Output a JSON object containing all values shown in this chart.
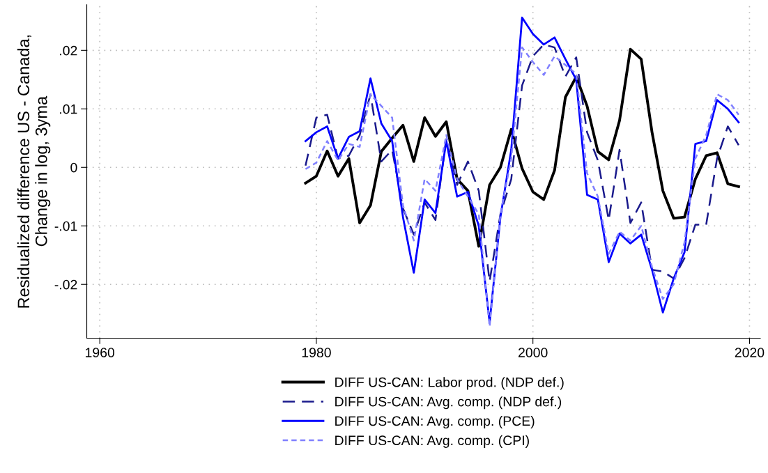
{
  "chart_data": {
    "type": "line",
    "ylabel": "Residualized difference US - Canada,\nChange in log, 3yma",
    "x": [
      1979,
      1980,
      1981,
      1982,
      1983,
      1984,
      1985,
      1986,
      1987,
      1988,
      1989,
      1990,
      1991,
      1992,
      1993,
      1994,
      1995,
      1996,
      1997,
      1998,
      1999,
      2000,
      2001,
      2002,
      2003,
      2004,
      2005,
      2006,
      2007,
      2008,
      2009,
      2010,
      2011,
      2012,
      2013,
      2014,
      2015,
      2016,
      2017,
      2018,
      2019
    ],
    "series": [
      {
        "name": "DIFF US-CAN: Labor prod. (NDP def.)",
        "color": "#000000",
        "line_style": "solid",
        "values": [
          -0.0027,
          -0.0015,
          0.0028,
          -0.0015,
          0.0015,
          -0.0095,
          -0.0065,
          0.0027,
          0.005,
          0.0072,
          0.001,
          0.0085,
          0.0053,
          0.0078,
          -0.002,
          -0.004,
          -0.0135,
          -0.003,
          0.0,
          0.0065,
          -0.0002,
          -0.0042,
          -0.0055,
          -0.0005,
          0.012,
          0.0155,
          0.0105,
          0.0027,
          0.0013,
          0.008,
          0.0202,
          0.0185,
          0.006,
          -0.004,
          -0.0087,
          -0.0085,
          -0.002,
          0.002,
          0.0025,
          -0.0028,
          -0.0033
        ]
      },
      {
        "name": "DIFF US-CAN: Avg. comp. (NDP def.)",
        "color": "#1a1a8c",
        "line_style": "dashed",
        "values": [
          0.0003,
          0.0085,
          0.009,
          0.0015,
          0.002,
          0.0055,
          0.0125,
          0.001,
          0.003,
          -0.007,
          -0.0115,
          -0.006,
          -0.009,
          0.005,
          -0.003,
          0.001,
          -0.004,
          -0.0195,
          -0.008,
          -0.002,
          0.014,
          0.019,
          0.021,
          0.0205,
          0.0155,
          0.0188,
          0.006,
          0.0012,
          -0.009,
          0.003,
          -0.0095,
          -0.006,
          -0.0175,
          -0.0178,
          -0.019,
          -0.0155,
          -0.0098,
          -0.0098,
          0.0015,
          0.007,
          0.0038
        ]
      },
      {
        "name": "DIFF US-CAN: Avg. comp. (PCE)",
        "color": "#0000ff",
        "line_style": "solid",
        "values": [
          0.0045,
          0.006,
          0.007,
          0.0015,
          0.0052,
          0.0062,
          0.0152,
          0.0075,
          0.0045,
          -0.0085,
          -0.018,
          -0.0055,
          -0.0078,
          0.0045,
          -0.005,
          -0.0042,
          -0.01,
          -0.0265,
          -0.0085,
          0.003,
          0.0256,
          0.0228,
          0.021,
          0.0222,
          0.0185,
          0.015,
          -0.0047,
          -0.0055,
          -0.0162,
          -0.0113,
          -0.013,
          -0.0115,
          -0.0175,
          -0.0248,
          -0.019,
          -0.0145,
          0.004,
          0.0045,
          0.0115,
          0.01,
          0.0077
        ]
      },
      {
        "name": "DIFF US-CAN: Avg. comp. (CPI)",
        "color": "#8080ff",
        "line_style": "dotted",
        "values": [
          -0.0003,
          0.0008,
          0.0045,
          0.0012,
          0.004,
          0.0035,
          0.0125,
          0.0105,
          0.0085,
          -0.0065,
          -0.0125,
          -0.002,
          -0.004,
          0.0055,
          -0.002,
          -0.005,
          -0.008,
          -0.0272,
          -0.008,
          0.0015,
          0.0205,
          0.018,
          0.0158,
          0.019,
          0.0175,
          0.016,
          -0.001,
          -0.005,
          -0.0148,
          -0.011,
          -0.0125,
          -0.01,
          -0.017,
          -0.0225,
          -0.02,
          -0.0128,
          0.0015,
          0.0055,
          0.0125,
          0.0115,
          0.009
        ]
      }
    ],
    "xlim": [
      1958.8,
      2021
    ],
    "xticks": [
      1960,
      1980,
      2000,
      2020
    ],
    "ylim": [
      -0.0292,
      0.0278
    ],
    "yticks": [
      {
        "value": -0.02,
        "label": "-.02"
      },
      {
        "value": -0.01,
        "label": "-.01"
      },
      {
        "value": 0,
        "label": "0"
      },
      {
        "value": 0.01,
        "label": ".01"
      },
      {
        "value": 0.02,
        "label": ".02"
      }
    ],
    "grid": true,
    "legend": "bottom"
  }
}
